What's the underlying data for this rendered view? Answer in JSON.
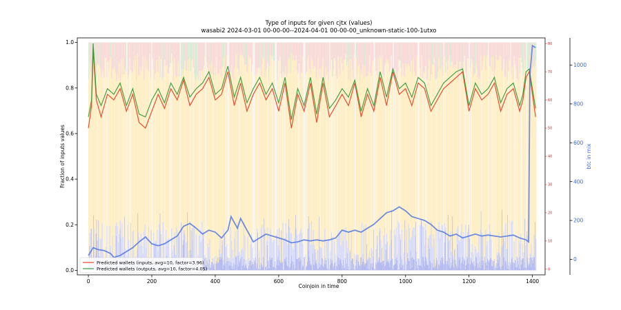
{
  "chart_data": {
    "type": "line",
    "title": "Type of inputs for given cjtx (values)",
    "subtitle": "wasabi2 2024-03-01 00-00-00--2024-04-01 00-00-00_unknown-static-100-1utxo",
    "xlabel": "Coinjoin in time",
    "ylabel": "Fraction of inputs values",
    "y2label": "btc in mix",
    "xlim": [
      -35,
      1440
    ],
    "ylim": [
      -0.02,
      1.02
    ],
    "y2lim": [
      -2,
      82
    ],
    "y3lim": [
      -80,
      1140
    ],
    "x_ticks": [
      "0",
      "200",
      "400",
      "600",
      "800",
      "1000",
      "1200",
      "1400"
    ],
    "y_ticks": [
      "0.0",
      "0.2",
      "0.4",
      "0.6",
      "0.8",
      "1.0"
    ],
    "y2_ticks": [
      "0",
      "10",
      "20",
      "30",
      "40",
      "50",
      "60",
      "70",
      "80"
    ],
    "y3_ticks": [
      "0",
      "200",
      "400",
      "600",
      "800",
      "1000"
    ],
    "legend": {
      "position": "lower-left",
      "entries": [
        {
          "label": "Predicted wallets (inputs, avg=10, factor=3.96)",
          "color": "#e8442a"
        },
        {
          "label": "Predicted wallets (outputs, avg=10, factor=4.05)",
          "color": "#3a9c3a"
        }
      ]
    },
    "series": [
      {
        "name": "Predicted wallets (inputs, avg=10, factor=3.96)",
        "axis": "right",
        "color": "#e8442a",
        "x": [
          0,
          10,
          15,
          25,
          40,
          60,
          80,
          100,
          120,
          140,
          160,
          180,
          200,
          220,
          240,
          260,
          280,
          300,
          320,
          340,
          360,
          380,
          400,
          420,
          440,
          460,
          480,
          500,
          520,
          540,
          560,
          580,
          600,
          620,
          640,
          660,
          680,
          700,
          720,
          740,
          760,
          780,
          800,
          820,
          840,
          860,
          880,
          900,
          920,
          940,
          960,
          980,
          1000,
          1020,
          1040,
          1060,
          1080,
          1100,
          1120,
          1140,
          1160,
          1180,
          1200,
          1220,
          1240,
          1260,
          1280,
          1300,
          1320,
          1340,
          1360,
          1370,
          1380,
          1390,
          1400,
          1410
        ],
        "values": [
          50,
          58,
          78,
          60,
          54,
          62,
          60,
          64,
          56,
          62,
          52,
          50,
          56,
          62,
          57,
          64,
          60,
          67,
          58,
          62,
          64,
          68,
          60,
          62,
          70,
          58,
          66,
          56,
          62,
          66,
          60,
          64,
          56,
          66,
          50,
          62,
          56,
          66,
          52,
          66,
          54,
          58,
          62,
          58,
          66,
          54,
          62,
          56,
          68,
          58,
          70,
          62,
          64,
          58,
          66,
          64,
          56,
          60,
          64,
          66,
          68,
          70,
          56,
          64,
          60,
          62,
          66,
          56,
          62,
          64,
          56,
          60,
          68,
          70,
          62,
          54
        ]
      },
      {
        "name": "Predicted wallets (outputs, avg=10, factor=4.05)",
        "axis": "right",
        "color": "#3a9c3a",
        "x": [
          0,
          10,
          15,
          25,
          40,
          60,
          80,
          100,
          120,
          140,
          160,
          180,
          200,
          220,
          240,
          260,
          280,
          300,
          320,
          340,
          360,
          380,
          400,
          420,
          440,
          460,
          480,
          500,
          520,
          540,
          560,
          580,
          600,
          620,
          640,
          660,
          680,
          700,
          720,
          740,
          760,
          780,
          800,
          820,
          840,
          860,
          880,
          900,
          920,
          940,
          960,
          980,
          1000,
          1020,
          1040,
          1060,
          1080,
          1100,
          1120,
          1140,
          1160,
          1180,
          1200,
          1220,
          1240,
          1260,
          1280,
          1300,
          1320,
          1340,
          1360,
          1370,
          1380,
          1390,
          1400,
          1410
        ],
        "values": [
          54,
          60,
          80,
          62,
          58,
          64,
          62,
          66,
          58,
          64,
          55,
          54,
          60,
          64,
          59,
          66,
          62,
          68,
          61,
          64,
          66,
          70,
          62,
          64,
          72,
          61,
          68,
          59,
          64,
          68,
          62,
          66,
          59,
          68,
          53,
          64,
          58,
          68,
          55,
          68,
          57,
          60,
          64,
          61,
          67,
          56,
          64,
          58,
          70,
          61,
          71,
          64,
          66,
          61,
          68,
          66,
          58,
          62,
          66,
          68,
          70,
          71,
          58,
          66,
          62,
          64,
          68,
          59,
          64,
          66,
          58,
          62,
          70,
          71,
          64,
          57
        ]
      },
      {
        "name": "btc in mix",
        "axis": "right2",
        "color": "#4169e1",
        "x": [
          0,
          15,
          30,
          50,
          70,
          80,
          100,
          140,
          160,
          180,
          200,
          220,
          240,
          260,
          280,
          300,
          320,
          340,
          360,
          380,
          400,
          420,
          440,
          450,
          460,
          470,
          480,
          500,
          520,
          540,
          560,
          580,
          600,
          620,
          640,
          660,
          680,
          700,
          720,
          740,
          760,
          780,
          800,
          820,
          840,
          860,
          880,
          900,
          920,
          940,
          960,
          980,
          1000,
          1020,
          1040,
          1060,
          1080,
          1100,
          1120,
          1140,
          1160,
          1180,
          1200,
          1220,
          1240,
          1260,
          1280,
          1300,
          1320,
          1340,
          1360,
          1380,
          1388,
          1392,
          1400,
          1410
        ],
        "values": [
          20,
          60,
          50,
          45,
          30,
          10,
          20,
          60,
          90,
          115,
          80,
          70,
          80,
          100,
          120,
          170,
          185,
          160,
          130,
          150,
          140,
          110,
          150,
          220,
          190,
          160,
          210,
          150,
          90,
          110,
          130,
          120,
          110,
          100,
          85,
          90,
          100,
          95,
          100,
          95,
          100,
          110,
          150,
          140,
          150,
          140,
          160,
          180,
          210,
          240,
          250,
          270,
          250,
          220,
          210,
          200,
          180,
          150,
          140,
          120,
          130,
          110,
          120,
          130,
          120,
          125,
          120,
          115,
          120,
          125,
          110,
          100,
          90,
          950,
          1100,
          1090
        ]
      }
    ]
  }
}
